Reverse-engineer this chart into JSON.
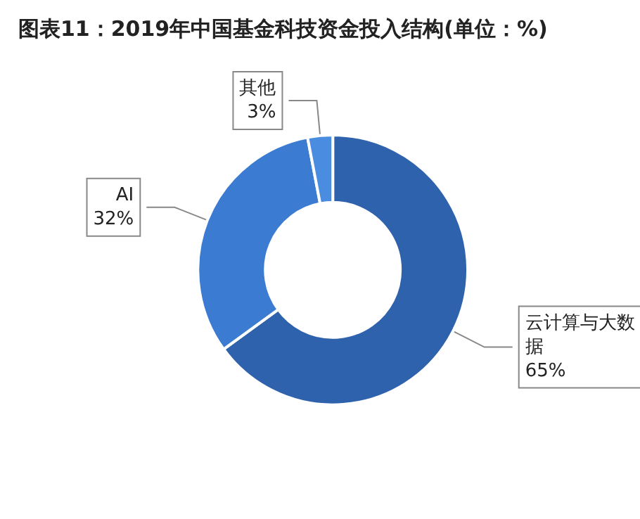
{
  "chart_data": {
    "type": "donut",
    "title": "图表11：2019年中国基金科技资金投入结构(单位：%)",
    "categories": [
      "云计算与大数据",
      "AI",
      "其他"
    ],
    "values": [
      65,
      32,
      3
    ],
    "colors": [
      "#2f62ad",
      "#3b7bd2",
      "#4a8ce0"
    ],
    "value_labels": [
      "65%",
      "32%",
      "3%"
    ],
    "legend": false
  }
}
